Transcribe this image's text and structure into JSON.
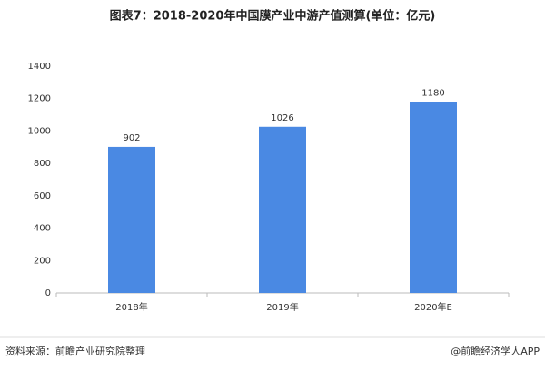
{
  "chart_data": {
    "type": "bar",
    "title": "图表7：2018-2020年中国膜产业中游产值测算(单位：亿元)",
    "categories": [
      "2018年",
      "2019年",
      "2020年E"
    ],
    "values": [
      902,
      1026,
      1180
    ],
    "color": "#4a89e3",
    "ylim": [
      0,
      1400
    ],
    "yticks": [
      0,
      200,
      400,
      600,
      800,
      1000,
      1200,
      1400
    ],
    "grid": false,
    "source": "资料来源：前瞻产业研究院整理",
    "credit": "@前瞻经济学人APP"
  }
}
